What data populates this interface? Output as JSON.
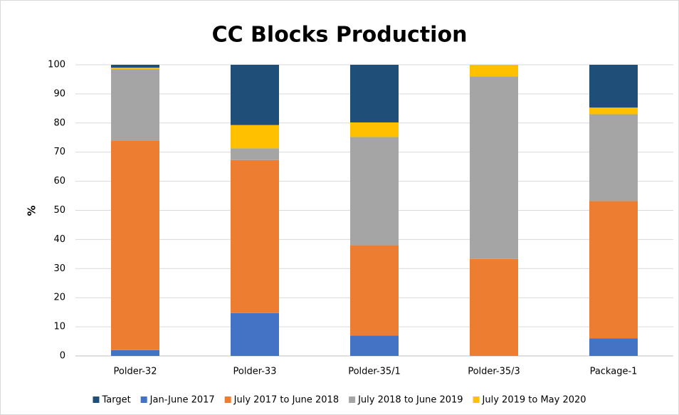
{
  "chart_data": {
    "type": "stacked_bar",
    "title": "CC Blocks Production",
    "y_label": "%",
    "categories": [
      "Polder-32",
      "Polder-33",
      "Polder-35/1",
      "Polder-35/3",
      "Package-1"
    ],
    "series": [
      {
        "name": "Jan-June 2017",
        "color": "#4472c4",
        "values": [
          2,
          14.7,
          7,
          0,
          6
        ]
      },
      {
        "name": "July 2017 to June 2018",
        "color": "#ed7d31",
        "values": [
          72,
          52.6,
          31,
          33.3,
          47.2
        ]
      },
      {
        "name": "July 2018 to June 2019",
        "color": "#a5a5a5",
        "values": [
          24.5,
          4,
          37.2,
          62.7,
          29.8
        ]
      },
      {
        "name": "July 2019 to May 2020",
        "color": "#ffc000",
        "values": [
          0.5,
          8,
          5,
          4,
          2.3
        ]
      },
      {
        "name": "Target",
        "color": "#1f4e79",
        "values": [
          1,
          20.7,
          19.8,
          0,
          14.7
        ]
      }
    ],
    "legend_order": [
      4,
      0,
      1,
      2,
      3
    ],
    "ylim": [
      0,
      100
    ],
    "yticks": [
      0,
      10,
      20,
      30,
      40,
      50,
      60,
      70,
      80,
      90,
      100
    ],
    "grid": true,
    "legend": "bottom"
  }
}
